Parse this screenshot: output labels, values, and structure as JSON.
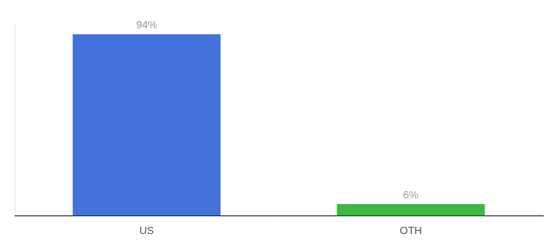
{
  "chart_data": {
    "type": "bar",
    "categories": [
      "US",
      "OTH"
    ],
    "values": [
      94,
      6
    ],
    "colors": [
      "#4472db",
      "#3cb845"
    ],
    "value_labels": [
      "94%",
      "6%"
    ],
    "data_labels": true,
    "ylim": [
      0,
      100
    ],
    "grid": false,
    "tick_labels": "x"
  }
}
